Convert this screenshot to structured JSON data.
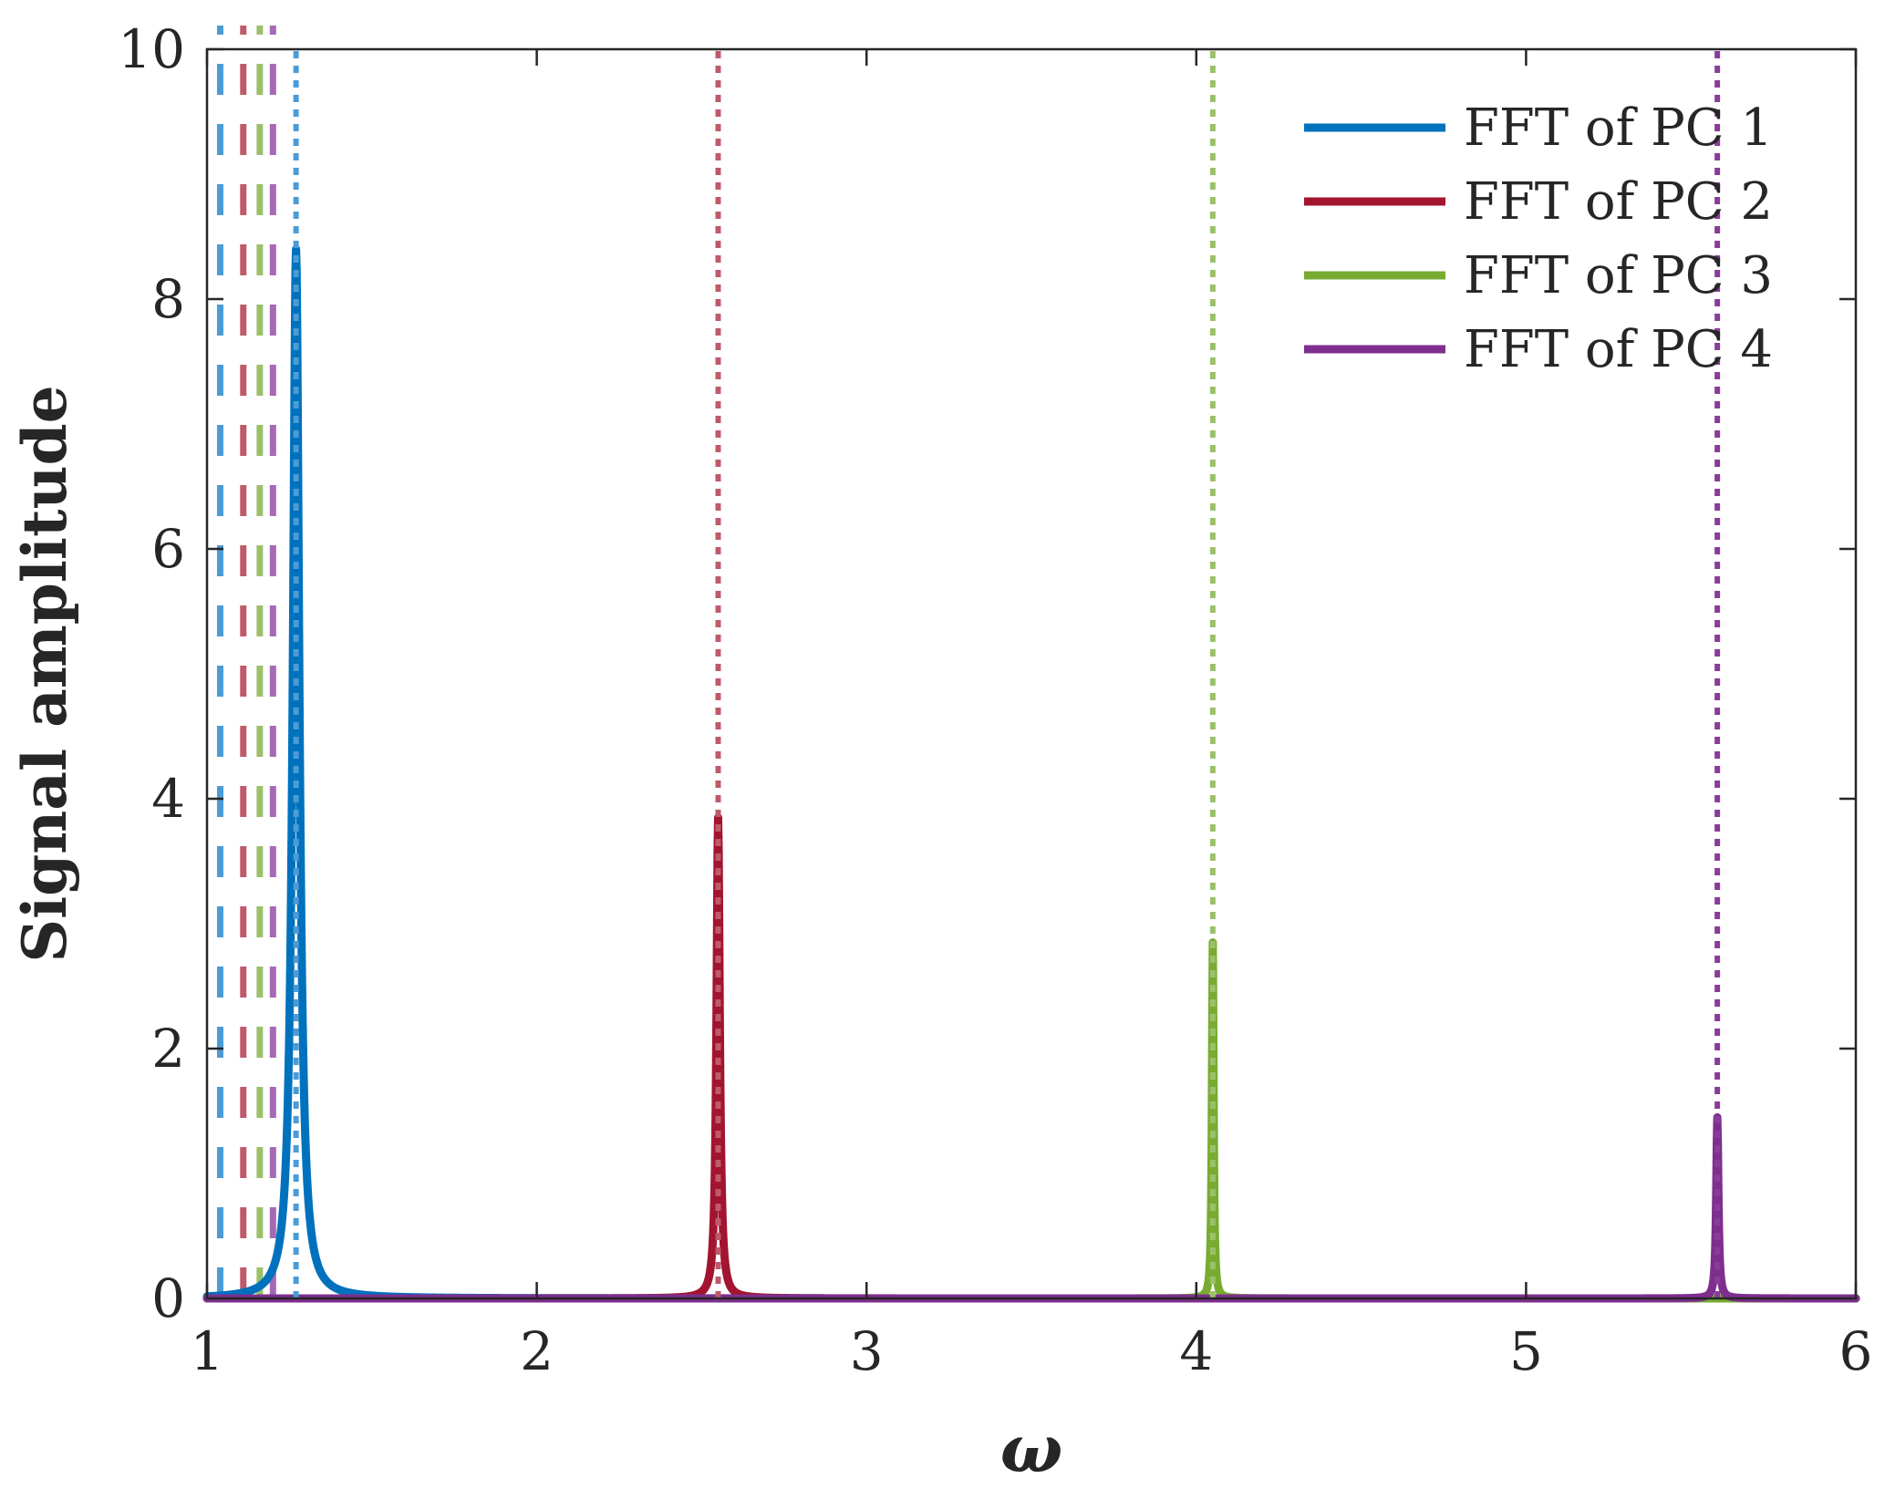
{
  "chart_data": {
    "type": "line",
    "xlabel": "ω",
    "ylabel": "Signal amplitude",
    "xlim": [
      1,
      6
    ],
    "ylim": [
      0,
      10
    ],
    "xticks": [
      1,
      2,
      3,
      4,
      5,
      6
    ],
    "yticks": [
      0,
      2,
      4,
      6,
      8,
      10
    ],
    "grid": false,
    "legend_position": "top-right",
    "series": [
      {
        "name": "FFT of PC 1",
        "color": "#0072BD",
        "peak_x": 1.27,
        "peak_y": 8.4,
        "width": 0.012
      },
      {
        "name": "FFT of PC 2",
        "color": "#A2142F",
        "peak_x": 2.55,
        "peak_y": 3.85,
        "width": 0.006
      },
      {
        "name": "FFT of PC 3",
        "color": "#77AC30",
        "peak_x": 4.05,
        "peak_y": 2.85,
        "width": 0.003
      },
      {
        "name": "FFT of PC 4",
        "color": "#7E2F8E",
        "peak_x": 5.58,
        "peak_y": 1.45,
        "width": 0.004
      }
    ],
    "reference_lines": [
      {
        "x": 1.27,
        "style": "dotted",
        "color": "#4C9BD6"
      },
      {
        "x": 2.55,
        "style": "dotted",
        "color": "#BF5A6A"
      },
      {
        "x": 4.05,
        "style": "dotted",
        "color": "#9CC06A"
      },
      {
        "x": 5.58,
        "style": "dotted",
        "color": "#8A3C99"
      }
    ],
    "low_freq_dashed_lines": [
      {
        "x": 1.04,
        "color": "#4C9BD6"
      },
      {
        "x": 1.11,
        "color": "#BF5A6A"
      },
      {
        "x": 1.16,
        "color": "#9CC06A"
      },
      {
        "x": 1.2,
        "color": "#A66AB5"
      }
    ]
  }
}
